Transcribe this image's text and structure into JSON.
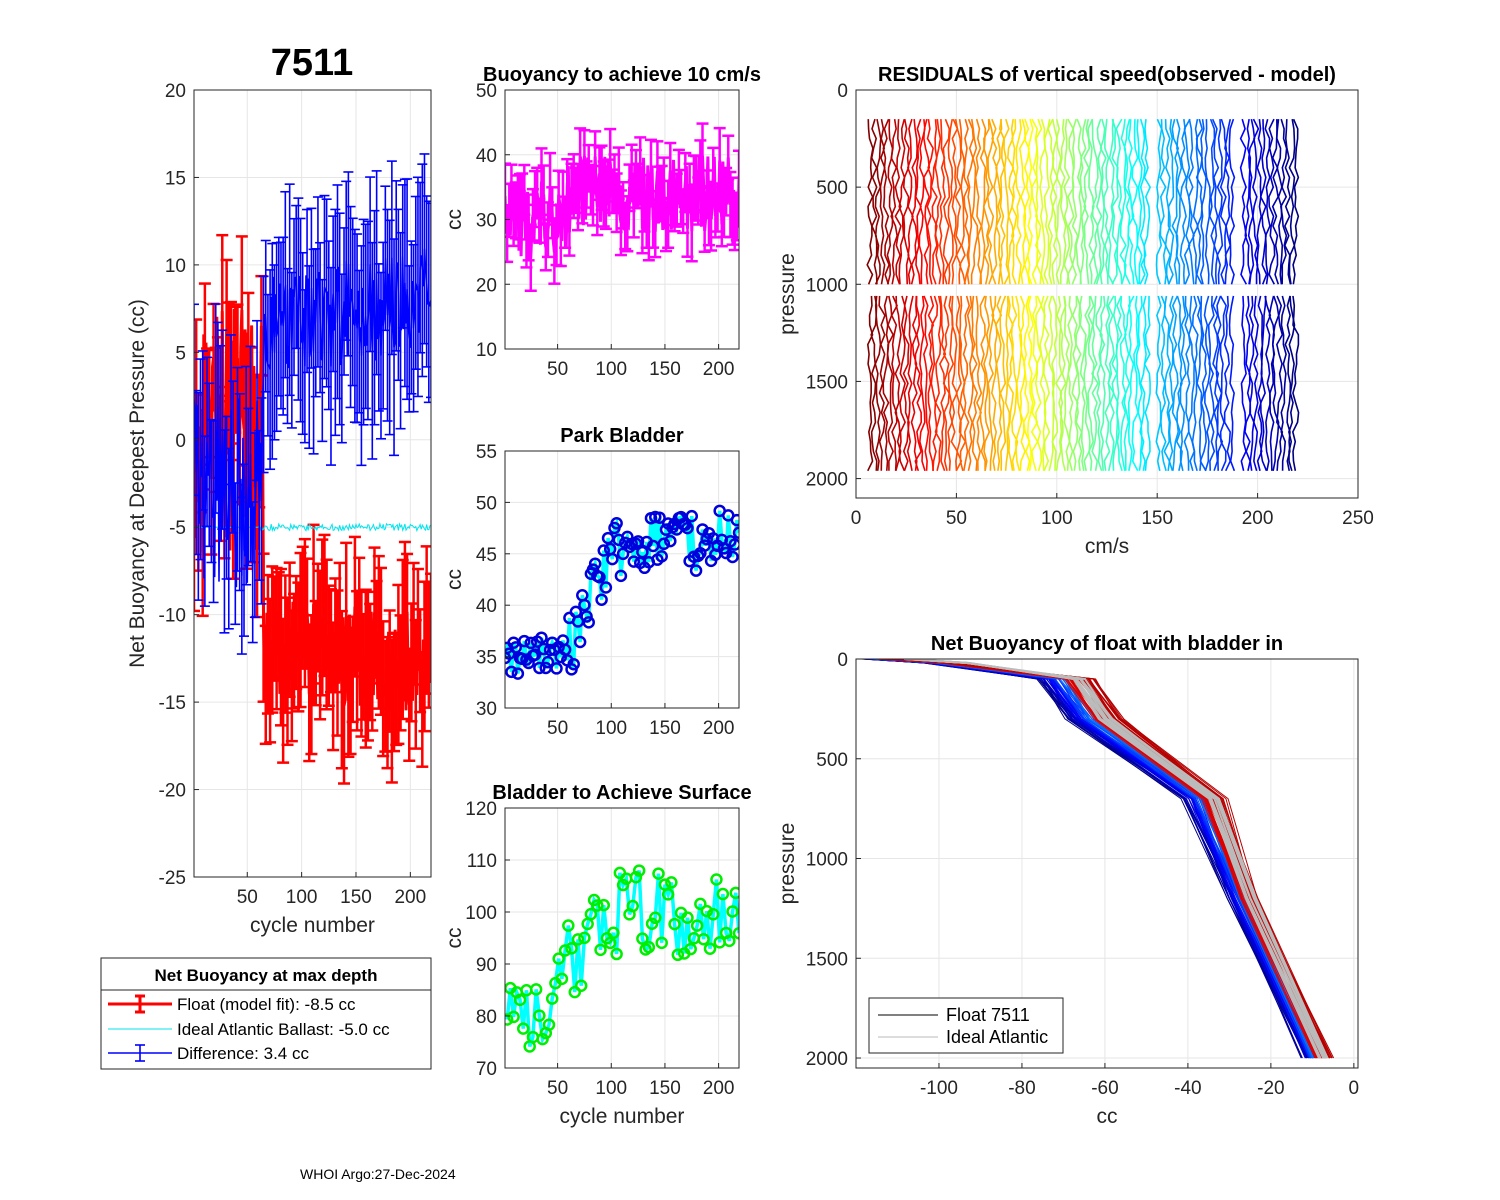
{
  "figure_title": "7511",
  "footer": "WHOI Argo:27-Dec-2024",
  "colors": {
    "float": "#ff0000",
    "ideal": "#00e5ee",
    "difference": "#0000ff",
    "buoyancy10": "#ff00ff",
    "park_marker": "#0000dd",
    "park_line": "#00ffff",
    "surface_marker": "#00ee00",
    "surface_line": "#00ffff",
    "grey": "#bbbbbb"
  },
  "chart_data": [
    {
      "id": "net_buoyancy",
      "type": "errorbar",
      "title": "7511",
      "xlabel": "cycle number",
      "ylabel": "Net Buoyancy at Deepest Pressure (cc)",
      "xlim": [
        1,
        219
      ],
      "ylim": [
        -25,
        20
      ],
      "xticks": [
        50,
        100,
        150,
        200
      ],
      "yticks": [
        -25,
        -20,
        -15,
        -10,
        -5,
        0,
        5,
        10,
        15,
        20
      ],
      "series": [
        {
          "name": "Float (model fit)",
          "early_mean": 1.0,
          "late_mean": -12.0,
          "break_cycle": 65,
          "error": 3.5
        },
        {
          "name": "Ideal Atlantic Ballast",
          "value": -5.0
        },
        {
          "name": "Difference",
          "early_mean": -3.0,
          "late_mean": 6.5,
          "break_cycle": 65,
          "error": 5.0
        }
      ],
      "legend": {
        "title": "Net Buoyancy at max depth",
        "entries": [
          "Float (model fit):  -8.5 cc",
          "Ideal Atlantic Ballast:  -5.0 cc",
          "Difference:   3.4 cc"
        ]
      }
    },
    {
      "id": "buoyancy_10",
      "type": "errorbar",
      "title": "Buoyancy to achieve 10 cm/s",
      "xlabel": "",
      "ylabel": "cc",
      "xlim": [
        1,
        219
      ],
      "ylim": [
        10,
        50
      ],
      "xticks": [
        50,
        100,
        150,
        200
      ],
      "yticks": [
        10,
        20,
        30,
        40,
        50
      ],
      "series": [
        {
          "name": "buoyancy",
          "mean": 32,
          "spread": 6,
          "error": 4
        }
      ]
    },
    {
      "id": "park_bladder",
      "type": "line",
      "title": "Park Bladder",
      "xlabel": "",
      "ylabel": "cc",
      "xlim": [
        1,
        219
      ],
      "ylim": [
        30,
        55
      ],
      "xticks": [
        50,
        100,
        150,
        200
      ],
      "yticks": [
        30,
        35,
        40,
        45,
        50,
        55
      ],
      "series": [
        {
          "name": "park",
          "start": 34.5,
          "end": 46.5
        }
      ]
    },
    {
      "id": "bladder_surface",
      "type": "line",
      "title": "Bladder to Achieve Surface",
      "xlabel": "cycle number",
      "ylabel": "cc",
      "xlim": [
        1,
        219
      ],
      "ylim": [
        70,
        120
      ],
      "xticks": [
        50,
        100,
        150,
        200
      ],
      "yticks": [
        70,
        80,
        90,
        100,
        110,
        120
      ],
      "series": [
        {
          "name": "surface",
          "start": 80,
          "end": 100
        }
      ]
    },
    {
      "id": "residuals",
      "type": "line",
      "title": "RESIDUALS of vertical speed(observed - model)",
      "xlabel": "cm/s",
      "ylabel": "pressure",
      "xlim": [
        0,
        250
      ],
      "ylim": [
        2100,
        0
      ],
      "xticks": [
        0,
        50,
        100,
        150,
        200,
        250
      ],
      "yticks": [
        0,
        500,
        1000,
        1500,
        2000
      ],
      "series": [
        {
          "name": "upper",
          "pmin": 150,
          "pmax": 1010
        },
        {
          "name": "lower",
          "pmin": 1060,
          "pmax": 2000
        }
      ]
    },
    {
      "id": "net_buoyancy_profile",
      "type": "line",
      "title": "Net Buoyancy of float with bladder in",
      "xlabel": "cc",
      "ylabel": "pressure",
      "xlim": [
        -120,
        1
      ],
      "ylim": [
        2050,
        0
      ],
      "xticks": [
        -100,
        -80,
        -60,
        -40,
        -20,
        0
      ],
      "yticks": [
        0,
        500,
        1000,
        1500,
        2000
      ],
      "legend": {
        "entries": [
          "Float 7511",
          "Ideal Atlantic"
        ]
      }
    }
  ]
}
